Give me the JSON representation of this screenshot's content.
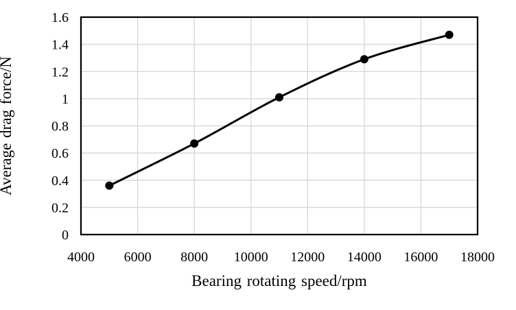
{
  "chart_data": {
    "type": "line",
    "title": "",
    "xlabel": "Bearing rotating speed/rpm",
    "ylabel": "Average drag force/N",
    "x": [
      5000,
      8000,
      11000,
      14000,
      17000
    ],
    "y": [
      0.36,
      0.67,
      1.01,
      1.29,
      1.47
    ],
    "xlim": [
      4000,
      18000
    ],
    "ylim": [
      0,
      1.6
    ],
    "x_ticks": [
      "4000",
      "6000",
      "8000",
      "10000",
      "12000",
      "14000",
      "16000",
      "18000"
    ],
    "x_tick_values": [
      4000,
      6000,
      8000,
      10000,
      12000,
      14000,
      16000,
      18000
    ],
    "y_ticks": [
      "0",
      "0.2",
      "0.4",
      "0.6",
      "0.8",
      "1",
      "1.2",
      "1.4",
      "1.6"
    ],
    "y_tick_values": [
      0,
      0.2,
      0.4,
      0.6,
      0.8,
      1,
      1.2,
      1.4,
      1.6
    ],
    "grid": true,
    "legend": "none",
    "line_style": "smooth",
    "line_color": "#000000",
    "marker": "circle",
    "marker_color": "#000000",
    "gridline_color": "#d9d9d9",
    "axis_color": "#000000",
    "background_color": "#ffffff"
  }
}
